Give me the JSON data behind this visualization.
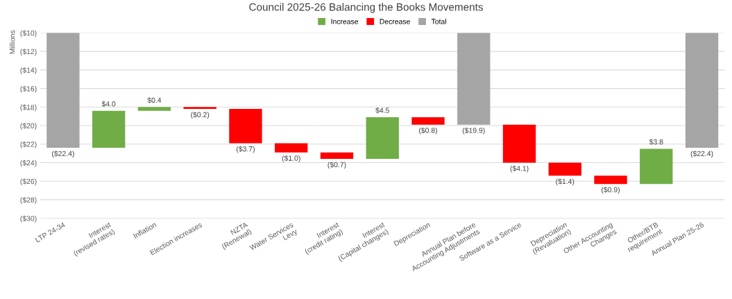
{
  "chart_data": {
    "type": "bar",
    "title": "Council 2025-26 Balancing the Books Movements",
    "ylabel": "Millions",
    "categories": [
      "LTP 24-34",
      "Interest\n(revised rates)",
      "Inflation",
      "Election increases",
      "NZTA\n(Renewal)",
      "Water Services\nLevy",
      "Interest\n(credit rating)",
      "Interest\n(Capital changes)",
      "Depreciation",
      "Annual Plan before\nAccounting Adjustments",
      "Software as a Service",
      "Depreciation\n(Revaluation)",
      "Other Accounting\nChanges",
      "Other/BTB\nrequirement",
      "Annual Plan 25-26"
    ],
    "series": [
      {
        "name": "Increase",
        "color": "#70ad47",
        "values": [
          null,
          4.0,
          0.4,
          null,
          null,
          null,
          null,
          4.5,
          null,
          null,
          null,
          null,
          null,
          3.8,
          null
        ],
        "base": [
          null,
          -22.4,
          -18.4,
          null,
          null,
          null,
          null,
          -23.6,
          null,
          null,
          null,
          null,
          null,
          -26.3,
          null
        ]
      },
      {
        "name": "Decrease",
        "color": "#ff0000",
        "values": [
          null,
          null,
          null,
          -0.2,
          -3.7,
          -1.0,
          -0.7,
          null,
          -0.8,
          null,
          -4.1,
          -1.4,
          -0.9,
          null,
          null
        ],
        "base": [
          null,
          null,
          null,
          -18.0,
          -18.2,
          -21.9,
          -22.9,
          null,
          -19.1,
          null,
          -19.9,
          -24.0,
          -25.4,
          null,
          null
        ]
      },
      {
        "name": "Total",
        "color": "#a5a5a5",
        "values": [
          -22.4,
          null,
          null,
          null,
          null,
          null,
          null,
          null,
          null,
          -19.9,
          null,
          null,
          null,
          null,
          -22.4
        ]
      }
    ],
    "value_labels": [
      "($22.4)",
      "$4.0",
      "$0.4",
      "($0.2)",
      "($3.7)",
      "($1.0)",
      "($0.7)",
      "$4.5",
      "($0.8)",
      "($19.9)",
      "($4.1)",
      "($1.4)",
      "($0.9)",
      "$3.8",
      "($22.4)"
    ],
    "ylim": [
      -30,
      -10
    ],
    "yticks": [
      {
        "value": -30,
        "label": "($30)"
      },
      {
        "value": -28,
        "label": "($28)"
      },
      {
        "value": -26,
        "label": "($26)"
      },
      {
        "value": -24,
        "label": "($24)"
      },
      {
        "value": -22,
        "label": "($22)"
      },
      {
        "value": -20,
        "label": "($20)"
      },
      {
        "value": -18,
        "label": "($18)"
      },
      {
        "value": -16,
        "label": "($16)"
      },
      {
        "value": -14,
        "label": "($14)"
      },
      {
        "value": -12,
        "label": "($12)"
      },
      {
        "value": -10,
        "label": "($10)"
      }
    ],
    "grid": "y",
    "legend": "top"
  }
}
